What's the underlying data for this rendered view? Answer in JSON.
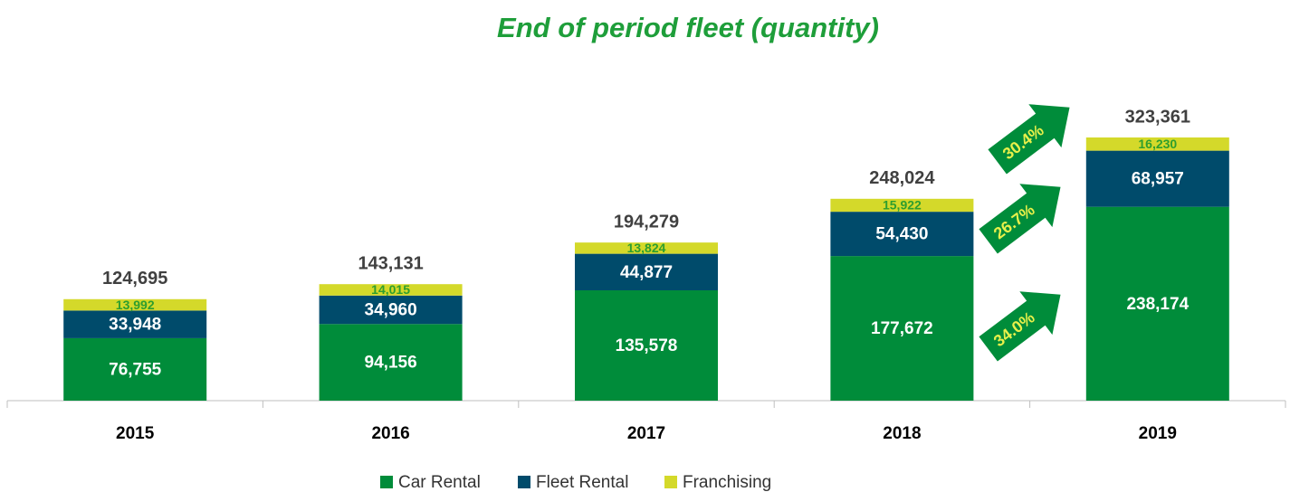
{
  "chart_data": {
    "type": "bar",
    "stacked": true,
    "title": "End of period fleet (quantity)",
    "categories": [
      "2015",
      "2016",
      "2017",
      "2018",
      "2019"
    ],
    "series": [
      {
        "name": "Car Rental",
        "color": "#008c3a",
        "label_color": "#ffffff",
        "values": [
          76755,
          94156,
          135578,
          177672,
          238174
        ],
        "value_labels": [
          "76,755",
          "94,156",
          "135,578",
          "177,672",
          "238,174"
        ]
      },
      {
        "name": "Fleet Rental",
        "color": "#004b6b",
        "label_color": "#ffffff",
        "values": [
          33948,
          34960,
          44877,
          54430,
          68957
        ],
        "value_labels": [
          "33,948",
          "34,960",
          "44,877",
          "54,430",
          "68,957"
        ]
      },
      {
        "name": "Franchising",
        "color": "#d4d92a",
        "label_color": "#2e9e2e",
        "values": [
          13992,
          14015,
          13824,
          15922,
          16230
        ],
        "value_labels": [
          "13,992",
          "14,015",
          "13,824",
          "15,922",
          "16,230"
        ]
      }
    ],
    "totals": [
      124695,
      143131,
      194279,
      248024,
      323361
    ],
    "total_labels": [
      "124,695",
      "143,131",
      "194,279",
      "248,024",
      "323,361"
    ],
    "annotations": [
      "34.0%",
      "26.7%",
      "30.4%"
    ],
    "annotation_color": "#008c3a"
  }
}
